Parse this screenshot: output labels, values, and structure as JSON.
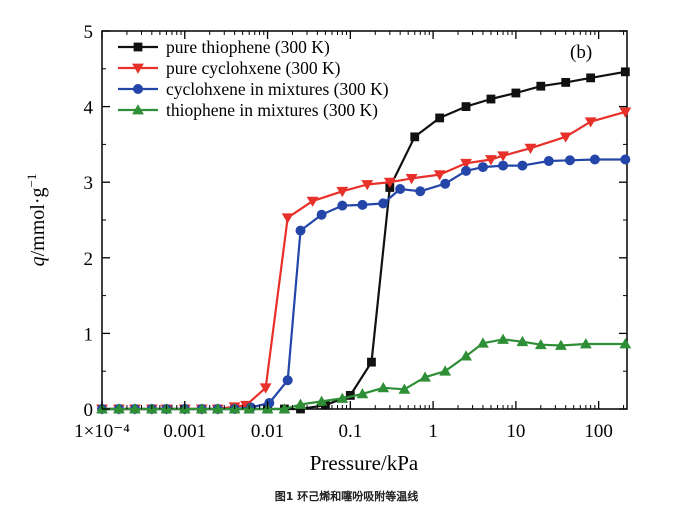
{
  "chart_data": {
    "type": "line",
    "panel_label": "(b)",
    "xlabel": "Pressure/kPa",
    "ylabel": "q/mmol·g⁻¹",
    "x_scale": "log",
    "xlim": [
      0.0001,
      220
    ],
    "ylim": [
      0,
      5
    ],
    "x_ticks": [
      {
        "value": 0.0001,
        "label": "1×10⁻⁴"
      },
      {
        "value": 0.001,
        "label": "0.001"
      },
      {
        "value": 0.01,
        "label": "0.01"
      },
      {
        "value": 0.1,
        "label": "0.1"
      },
      {
        "value": 1,
        "label": "1"
      },
      {
        "value": 10,
        "label": "10"
      },
      {
        "value": 100,
        "label": "100"
      }
    ],
    "y_ticks": [
      0,
      1,
      2,
      3,
      4,
      5
    ],
    "legend_position": "top-left",
    "series": [
      {
        "name": "pure thiophene (300 K)",
        "color": "#111111",
        "marker": "square",
        "x": [
          0.0001,
          0.00016,
          0.00025,
          0.0004,
          0.0006,
          0.001,
          0.0016,
          0.0025,
          0.004,
          0.006,
          0.01,
          0.016,
          0.025,
          0.05,
          0.1,
          0.18,
          0.3,
          0.6,
          1.2,
          2.5,
          5,
          10,
          20,
          40,
          80,
          210
        ],
        "y": [
          0,
          0,
          0,
          0,
          0,
          0,
          0,
          0,
          0,
          0,
          0,
          0,
          0,
          0.05,
          0.18,
          0.62,
          2.93,
          3.6,
          3.85,
          4.0,
          4.1,
          4.18,
          4.27,
          4.32,
          4.38,
          4.46
        ]
      },
      {
        "name": "pure cyclohxene (300 K)",
        "color": "#e8302a",
        "marker": "triangle-down",
        "x": [
          0.0001,
          0.00016,
          0.00025,
          0.0004,
          0.0006,
          0.001,
          0.0016,
          0.0025,
          0.004,
          0.0055,
          0.0095,
          0.0175,
          0.035,
          0.08,
          0.16,
          0.3,
          0.55,
          1.2,
          2.5,
          5,
          7,
          15,
          40,
          80,
          210
        ],
        "y": [
          0,
          0,
          0,
          0,
          0,
          0,
          0,
          0,
          0.03,
          0.05,
          0.28,
          2.53,
          2.75,
          2.88,
          2.97,
          3.0,
          3.05,
          3.1,
          3.25,
          3.3,
          3.35,
          3.45,
          3.6,
          3.8,
          3.93
        ]
      },
      {
        "name": "cyclohxene in mixtures (300 K)",
        "color": "#2446a8",
        "marker": "circle",
        "x": [
          0.0001,
          0.00016,
          0.00025,
          0.0004,
          0.0006,
          0.001,
          0.0016,
          0.0025,
          0.004,
          0.0063,
          0.0105,
          0.0175,
          0.025,
          0.045,
          0.08,
          0.14,
          0.25,
          0.4,
          0.7,
          1.4,
          2.5,
          4,
          7,
          12,
          25,
          45,
          90,
          210
        ],
        "y": [
          0,
          0,
          0,
          0,
          0,
          0,
          0,
          0,
          0,
          0.02,
          0.08,
          0.38,
          2.36,
          2.57,
          2.69,
          2.7,
          2.72,
          2.91,
          2.88,
          2.98,
          3.15,
          3.2,
          3.22,
          3.22,
          3.28,
          3.29,
          3.3,
          3.3
        ]
      },
      {
        "name": "thiophene in mixtures (300 K)",
        "color": "#2f8f36",
        "marker": "triangle-up",
        "x": [
          0.0001,
          0.00016,
          0.00025,
          0.0004,
          0.0006,
          0.001,
          0.0016,
          0.0025,
          0.004,
          0.006,
          0.01,
          0.016,
          0.025,
          0.045,
          0.08,
          0.14,
          0.25,
          0.45,
          0.8,
          1.4,
          2.5,
          4,
          7,
          12,
          20,
          35,
          70,
          210
        ],
        "y": [
          0,
          0,
          0,
          0,
          0,
          0,
          0,
          0,
          0,
          0,
          0,
          0,
          0.06,
          0.1,
          0.14,
          0.2,
          0.28,
          0.26,
          0.42,
          0.5,
          0.7,
          0.87,
          0.92,
          0.89,
          0.85,
          0.84,
          0.86,
          0.86
        ]
      }
    ]
  },
  "caption": "图1 环己烯和噻吩吸附等温线"
}
